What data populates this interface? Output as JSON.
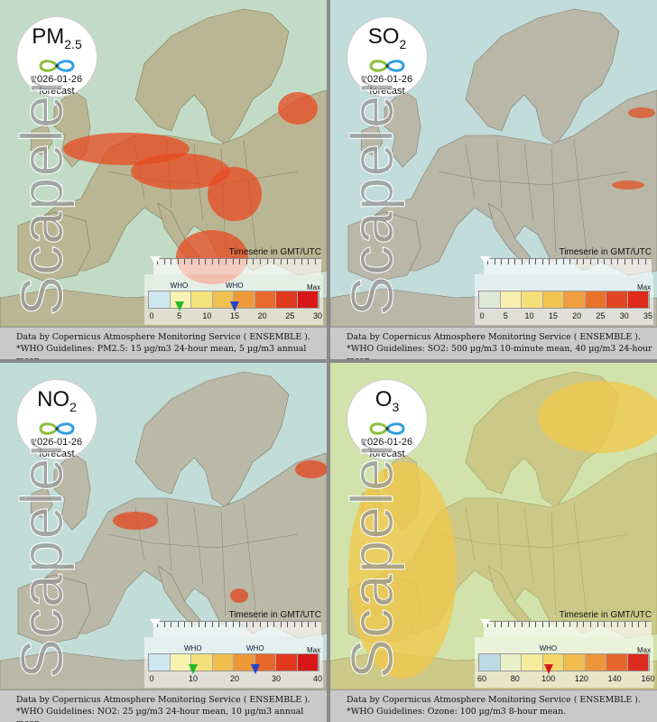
{
  "panels": [
    {
      "pollutant_base": "PM",
      "pollutant_sub": "2.5",
      "date": "2026-01-26",
      "forecast_label": "forecast",
      "watermark": "Scapeler",
      "timeserie_label": "Timeserie in GMT/UTC",
      "legend_ticks": [
        "0",
        "5",
        "10",
        "15",
        "20",
        "25",
        "30"
      ],
      "legend_max_label": "Max",
      "who_labels": [
        "WHO",
        "WHO"
      ],
      "who_values": [
        5,
        15
      ],
      "who_colors": [
        "#22bb22",
        "#2244cc"
      ],
      "legend_colors": [
        "#cfe7ef",
        "#f7f2b2",
        "#f3e37a",
        "#f1c150",
        "#ee9a3a",
        "#e86a2b",
        "#e03a20",
        "#d81818"
      ],
      "footer_line1": "Data by Copernicus Atmosphere Monitoring Service ( ENSEMBLE ).",
      "footer_line2": "*WHO Guidelines: PM2.5: 15 µg/m3 24-hour mean, 5 µg/m3 annual mean."
    },
    {
      "pollutant_base": "SO",
      "pollutant_sub": "2",
      "date": "2026-01-26",
      "forecast_label": "forecast",
      "watermark": "Scapeler",
      "timeserie_label": "Timeserie in GMT/UTC",
      "legend_ticks": [
        "0",
        "5",
        "10",
        "15",
        "20",
        "25",
        "30",
        "35"
      ],
      "legend_max_label": "Max",
      "who_labels": [],
      "who_values": [],
      "who_colors": [],
      "legend_colors": [
        "#dfe8d7",
        "#f6efae",
        "#f4df78",
        "#f2c451",
        "#ef9d3d",
        "#e9722d",
        "#e24622",
        "#dd2a1a"
      ],
      "footer_line1": "Data by Copernicus Atmosphere Monitoring Service ( ENSEMBLE ).",
      "footer_line2": "*WHO Guidelines: SO2: 500 µg/m3 10-minute mean, 40 µg/m3 24-hour mean."
    },
    {
      "pollutant_base": "NO",
      "pollutant_sub": "2",
      "date": "2026-01-26",
      "forecast_label": "forecast",
      "watermark": "Scapeler",
      "timeserie_label": "Timeserie in GMT/UTC",
      "legend_ticks": [
        "0",
        "10",
        "20",
        "30",
        "40"
      ],
      "legend_max_label": "Max",
      "who_labels": [
        "WHO",
        "WHO"
      ],
      "who_values": [
        10,
        25
      ],
      "who_colors": [
        "#22bb22",
        "#2244cc"
      ],
      "legend_colors": [
        "#cfe7ef",
        "#f8f2b0",
        "#f3e07a",
        "#f0be4c",
        "#ed963a",
        "#e8682b",
        "#e2391f",
        "#d81818"
      ],
      "footer_line1": "Data by Copernicus Atmosphere Monitoring Service ( ENSEMBLE ).",
      "footer_line2": "*WHO Guidelines: NO2: 25 µg/m3 24-hour mean, 10 µg/m3 annual mean."
    },
    {
      "pollutant_base": "O",
      "pollutant_sub": "3",
      "date": "2026-01-26",
      "forecast_label": "forecast",
      "watermark": "Scapeler",
      "timeserie_label": "Timeserie in GMT/UTC",
      "legend_ticks": [
        "60",
        "80",
        "100",
        "120",
        "140",
        "160"
      ],
      "legend_max_label": "Max",
      "who_labels": [
        "WHO"
      ],
      "who_values": [
        100
      ],
      "who_colors": [
        "#d81818"
      ],
      "legend_colors": [
        "#bcd9e6",
        "#e9f0c8",
        "#f5ec9a",
        "#f2d86a",
        "#f0bc4e",
        "#ec943a",
        "#e8662b",
        "#dc2a1c"
      ],
      "footer_line1": "Data by Copernicus Atmosphere Monitoring Service ( ENSEMBLE ).",
      "footer_line2": "*WHO Guidelines: Ozone: 100 µg/m3 8-hour mean."
    }
  ]
}
